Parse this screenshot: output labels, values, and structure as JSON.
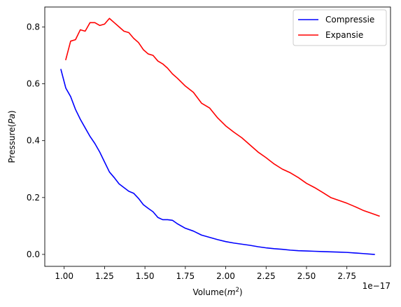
{
  "chart_data": {
    "type": "line",
    "xlabel": {
      "prefix": "Volume(",
      "var": "m",
      "sup": "2",
      "suffix": ")"
    },
    "ylabel": {
      "prefix": "Pressure(",
      "var": "Pa",
      "suffix": ")"
    },
    "x_offset_text": "1e−17",
    "x_scale_exponent": -17,
    "xlim": [
      0.88,
      3.02
    ],
    "ylim": [
      -0.042,
      0.87
    ],
    "x_ticks": [
      1.0,
      1.25,
      1.5,
      1.75,
      2.0,
      2.25,
      2.5,
      2.75
    ],
    "x_tick_labels": [
      "1.00",
      "1.25",
      "1.50",
      "1.75",
      "2.00",
      "2.25",
      "2.50",
      "2.75"
    ],
    "y_ticks": [
      0.0,
      0.2,
      0.4,
      0.6,
      0.8
    ],
    "y_tick_labels": [
      "0.0",
      "0.2",
      "0.4",
      "0.6",
      "0.8"
    ],
    "grid": false,
    "legend_position": "top-right",
    "series": [
      {
        "name": "Compressie",
        "color": "#0000ff",
        "x": [
          0.98,
          1.01,
          1.04,
          1.07,
          1.1,
          1.13,
          1.16,
          1.19,
          1.22,
          1.25,
          1.28,
          1.31,
          1.34,
          1.37,
          1.4,
          1.43,
          1.46,
          1.49,
          1.52,
          1.55,
          1.58,
          1.61,
          1.64,
          1.67,
          1.7,
          1.75,
          1.8,
          1.85,
          1.9,
          1.95,
          2.0,
          2.05,
          2.1,
          2.15,
          2.2,
          2.25,
          2.3,
          2.35,
          2.4,
          2.45,
          2.5,
          2.55,
          2.6,
          2.65,
          2.7,
          2.75,
          2.8,
          2.85,
          2.92
        ],
        "y": [
          0.65,
          0.585,
          0.555,
          0.51,
          0.475,
          0.445,
          0.415,
          0.39,
          0.36,
          0.325,
          0.29,
          0.27,
          0.248,
          0.235,
          0.222,
          0.215,
          0.197,
          0.175,
          0.162,
          0.15,
          0.13,
          0.122,
          0.122,
          0.12,
          0.108,
          0.092,
          0.082,
          0.068,
          0.06,
          0.052,
          0.045,
          0.04,
          0.036,
          0.032,
          0.027,
          0.023,
          0.02,
          0.018,
          0.015,
          0.013,
          0.012,
          0.011,
          0.01,
          0.009,
          0.008,
          0.007,
          0.005,
          0.003,
          0.0
        ]
      },
      {
        "name": "Expansie",
        "color": "#ff0000",
        "x": [
          1.01,
          1.04,
          1.07,
          1.1,
          1.13,
          1.16,
          1.19,
          1.22,
          1.25,
          1.28,
          1.31,
          1.34,
          1.37,
          1.4,
          1.43,
          1.46,
          1.49,
          1.52,
          1.55,
          1.58,
          1.61,
          1.64,
          1.67,
          1.7,
          1.75,
          1.8,
          1.85,
          1.9,
          1.95,
          2.0,
          2.05,
          2.1,
          2.15,
          2.2,
          2.25,
          2.3,
          2.35,
          2.4,
          2.45,
          2.5,
          2.55,
          2.6,
          2.65,
          2.7,
          2.75,
          2.8,
          2.85,
          2.9,
          2.95
        ],
        "y": [
          0.685,
          0.75,
          0.755,
          0.79,
          0.785,
          0.815,
          0.815,
          0.805,
          0.81,
          0.83,
          0.815,
          0.8,
          0.785,
          0.78,
          0.76,
          0.745,
          0.72,
          0.705,
          0.7,
          0.68,
          0.67,
          0.655,
          0.635,
          0.62,
          0.592,
          0.57,
          0.532,
          0.515,
          0.48,
          0.452,
          0.43,
          0.41,
          0.385,
          0.36,
          0.34,
          0.318,
          0.3,
          0.287,
          0.27,
          0.25,
          0.235,
          0.218,
          0.2,
          0.19,
          0.18,
          0.168,
          0.155,
          0.145,
          0.135
        ]
      }
    ]
  }
}
